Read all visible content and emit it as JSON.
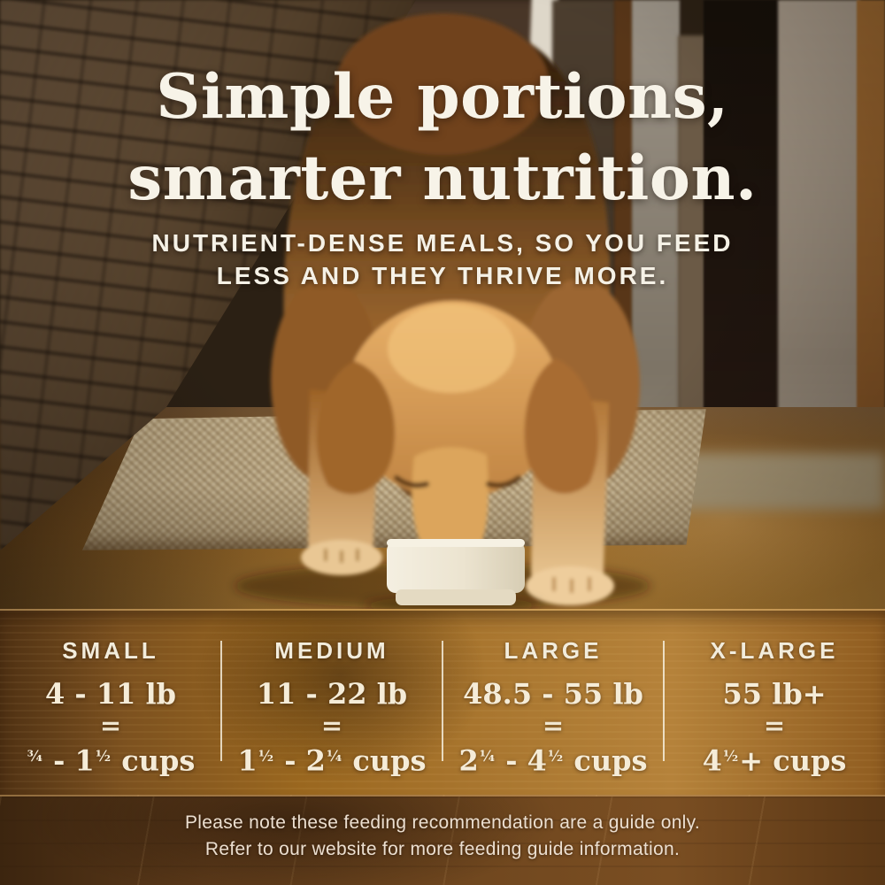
{
  "headline": {
    "line1": "Simple portions,",
    "line2": "smarter nutrition."
  },
  "subheadline": {
    "line1": "NUTRIENT-DENSE MEALS, SO YOU FEED",
    "line2": "LESS AND THEY THRIVE MORE."
  },
  "feeding_guide": {
    "columns": [
      {
        "size_label": "SMALL",
        "weight_range": "4 - 11 lb",
        "equals_sign": "=",
        "cups_range": "¾ - 1½ cups"
      },
      {
        "size_label": "MEDIUM",
        "weight_range": "11 - 22 lb",
        "equals_sign": "=",
        "cups_range": "1½ - 2¼ cups"
      },
      {
        "size_label": "LARGE",
        "weight_range": "48.5 - 55 lb",
        "equals_sign": "=",
        "cups_range": "2¼ - 4½ cups"
      },
      {
        "size_label": "X-LARGE",
        "weight_range": "55 lb+",
        "equals_sign": "=",
        "cups_range": "4½+ cups"
      }
    ]
  },
  "footnote": {
    "line1": "Please note these feeding recommendation are a guide only.",
    "line2": "Refer to our website for more feeding guide information."
  },
  "colors": {
    "headline_text": "#f7f3e8",
    "guide_text": "#f3ead6",
    "divider": "#f5efe0",
    "wood_step": "#a9762f",
    "wood_floor_front": "#71481f",
    "bowl": "#ece4d0",
    "dog_coat": "#c28442"
  }
}
